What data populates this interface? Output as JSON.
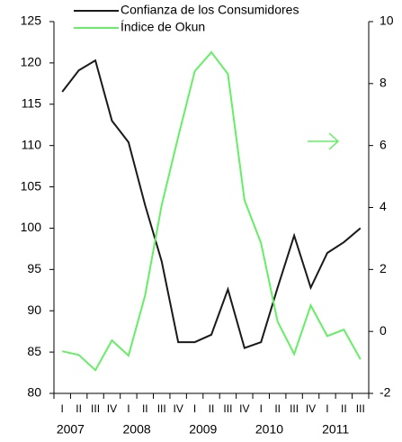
{
  "chart_data": {
    "type": "line",
    "categories": [
      "I",
      "II",
      "III",
      "IV",
      "I",
      "II",
      "III",
      "IV",
      "I",
      "II",
      "III",
      "IV",
      "I",
      "II",
      "III",
      "IV",
      "I",
      "II",
      "III"
    ],
    "year_labels": [
      "2007",
      "2008",
      "2009",
      "2010",
      "2011"
    ],
    "series": [
      {
        "name": "Confianza de los Consumidores",
        "color": "#1a1a1a",
        "values": [
          116.5,
          119.1,
          120.3,
          113,
          110.4,
          102.8,
          96,
          86.2,
          86.2,
          87.1,
          92.6,
          85.5,
          86.2,
          92.8,
          99.1,
          92.8,
          97,
          98.3,
          100
        ]
      },
      {
        "name": "Índice de Okun",
        "color": "#66ee66",
        "axis": "y2",
        "values": [
          -0.64,
          -0.76,
          -1.25,
          -0.29,
          -0.78,
          1.16,
          4.07,
          6.28,
          8.4,
          9.01,
          8.31,
          4.24,
          2.85,
          0.32,
          -0.73,
          0.84,
          -0.15,
          0.06,
          -0.9
        ]
      }
    ],
    "ylim": [
      80,
      125
    ],
    "yticks": [
      80,
      85,
      90,
      95,
      100,
      105,
      110,
      115,
      120,
      125
    ],
    "y2lim": [
      -2,
      10
    ],
    "y2ticks": [
      -2,
      0,
      2,
      4,
      6,
      8,
      10
    ]
  }
}
